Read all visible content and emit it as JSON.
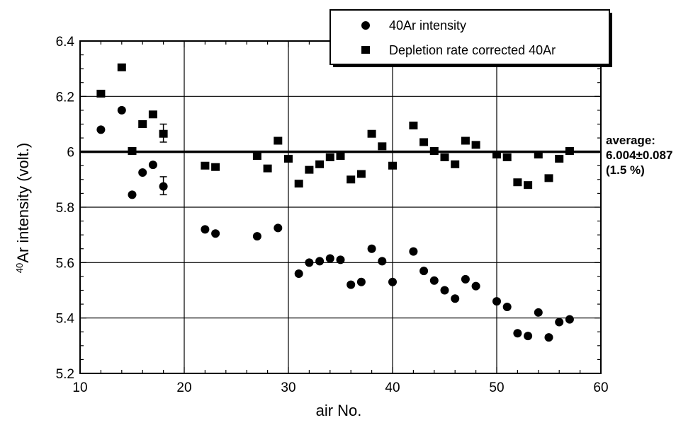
{
  "chart_data": {
    "type": "scatter",
    "title": "",
    "xlabel": "air No.",
    "ylabel_superscript": "40",
    "ylabel": "Ar intensity (volt.)",
    "xlim": [
      10,
      60
    ],
    "ylim": [
      5.2,
      6.4
    ],
    "x_ticks": [
      "10",
      "20",
      "30",
      "40",
      "50",
      "60"
    ],
    "y_ticks": [
      "5.2",
      "5.4",
      "5.6",
      "5.8",
      "6",
      "6.2",
      "6.4"
    ],
    "grid": true,
    "legend_position": "top-right",
    "series": [
      {
        "name": "40Ar intensity",
        "marker": "circle",
        "x": [
          12,
          14,
          15,
          16,
          17,
          18,
          22,
          23,
          27,
          29,
          31,
          32,
          33,
          34,
          35,
          36,
          37,
          38,
          39,
          40,
          42,
          43,
          44,
          45,
          46,
          47,
          48,
          50,
          51,
          52,
          53,
          54,
          55,
          56,
          57
        ],
        "y": [
          6.08,
          6.15,
          5.845,
          5.925,
          5.953,
          5.875,
          5.72,
          5.705,
          5.695,
          5.725,
          5.56,
          5.6,
          5.605,
          5.615,
          5.61,
          5.52,
          5.53,
          5.65,
          5.605,
          5.53,
          5.64,
          5.57,
          5.535,
          5.5,
          5.47,
          5.54,
          5.515,
          5.46,
          5.44,
          5.345,
          5.335,
          5.42,
          5.33,
          5.385,
          5.395
        ]
      },
      {
        "name": "Depletion rate corrected 40Ar",
        "marker": "square",
        "x": [
          12,
          14,
          15,
          16,
          17,
          18,
          22,
          23,
          27,
          28,
          29,
          30,
          31,
          32,
          33,
          34,
          35,
          36,
          37,
          38,
          39,
          40,
          42,
          43,
          44,
          45,
          46,
          47,
          48,
          50,
          51,
          52,
          53,
          54,
          55,
          56,
          57
        ],
        "y": [
          6.21,
          6.305,
          6.003,
          6.1,
          6.135,
          6.065,
          5.95,
          5.945,
          5.985,
          5.94,
          6.04,
          5.975,
          5.885,
          5.935,
          5.955,
          5.98,
          5.985,
          5.9,
          5.92,
          6.065,
          6.02,
          5.95,
          6.095,
          6.035,
          6.003,
          5.98,
          5.955,
          6.04,
          6.025,
          5.99,
          5.98,
          5.89,
          5.88,
          5.99,
          5.905,
          5.975,
          6.003
        ]
      }
    ],
    "error_bars": [
      {
        "x": 18,
        "y": 6.065,
        "low": 6.035,
        "high": 6.1
      },
      {
        "x": 18,
        "y": 5.875,
        "low": 5.845,
        "high": 5.91
      }
    ],
    "reference_line": {
      "y": 6.0
    },
    "annotation": {
      "line1": "average:",
      "line2": "6.004±0.087",
      "line3": "(1.5 %)"
    }
  },
  "colors": {
    "marker": "#000000",
    "grid": "#000000",
    "background": "#ffffff"
  }
}
